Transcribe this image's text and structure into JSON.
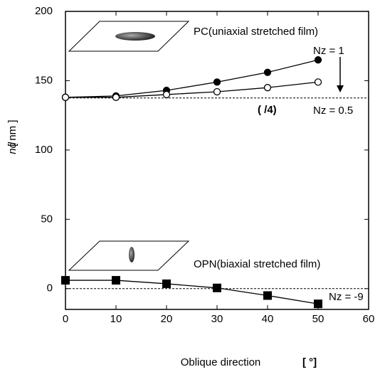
{
  "chart_data": {
    "type": "line",
    "x_label": "Oblique direction",
    "x_unit": "[ °]",
    "y_label": "nd",
    "y_unit": "[ nm ]",
    "x": [
      0,
      10,
      20,
      30,
      40,
      50
    ],
    "series": [
      {
        "name": "Nz = 1",
        "color": "#000000",
        "marker": "filled-circle",
        "values": [
          138,
          139,
          143,
          149,
          156,
          165
        ]
      },
      {
        "name": "Nz = 0.5",
        "color": "#000000",
        "marker": "open-circle",
        "values": [
          138,
          138,
          140,
          142,
          145,
          149
        ]
      },
      {
        "name": "Nz = -9",
        "color": "#000000",
        "marker": "filled-square",
        "values": [
          6,
          6,
          3.5,
          0.5,
          -5,
          -11
        ]
      }
    ],
    "hlines": [
      137.5,
      0
    ],
    "annotations": {
      "pc": "PC(uniaxial stretched film)",
      "opn": "OPN(biaxial stretched film)",
      "lambda": "(   /4)"
    },
    "xlim": [
      0,
      60
    ],
    "xticks": [
      0,
      10,
      20,
      30,
      40,
      50,
      60
    ],
    "ylim": [
      -15,
      200
    ],
    "yticks": [
      0,
      50,
      100,
      150,
      200
    ]
  }
}
